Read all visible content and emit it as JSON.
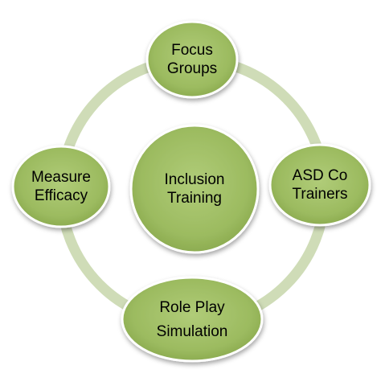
{
  "colors": {
    "ring": "#cfdcb7",
    "node_fill_light": "#a7c46e",
    "node_fill_dark": "#8bab4e",
    "node_border": "#ffffff"
  },
  "center": {
    "line1": "Inclusion",
    "line2": "Training"
  },
  "nodes": {
    "top": {
      "line1": "Focus",
      "line2": "Groups"
    },
    "right": {
      "line1": "ASD Co",
      "line2": "Trainers"
    },
    "bottom": {
      "line1": "Role Play",
      "line2": "Simulation"
    },
    "left": {
      "line1": "Measure",
      "line2": "Efficacy"
    }
  }
}
